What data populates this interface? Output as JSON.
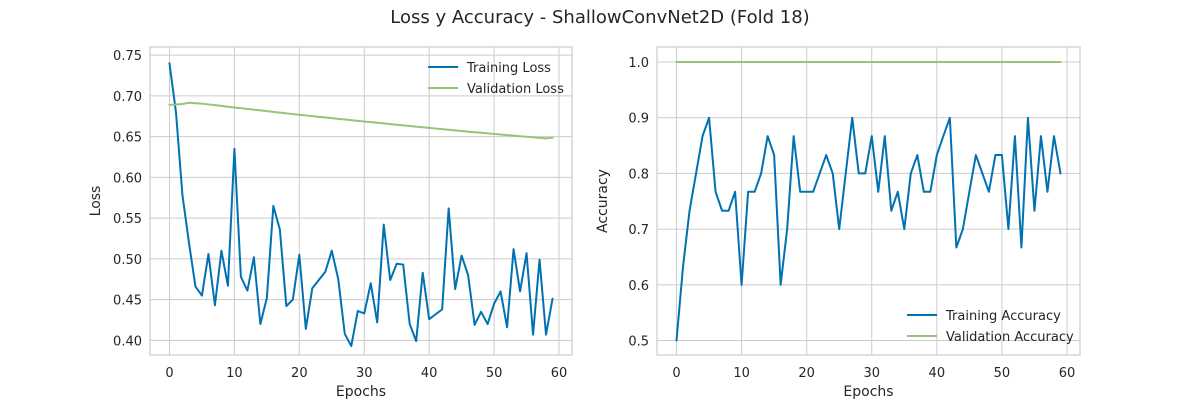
{
  "figure": {
    "title": "Loss y Accuracy - ShallowConvNet2D (Fold 18)"
  },
  "colors": {
    "training": "#0072b2",
    "validation": "#99c27a"
  },
  "chart_data": [
    {
      "type": "line",
      "title": "",
      "xlabel": "Epochs",
      "ylabel": "Loss",
      "xlim": [
        -3,
        62
      ],
      "ylim": [
        0.382,
        0.76
      ],
      "xticks": [
        0,
        10,
        20,
        30,
        40,
        50,
        60
      ],
      "yticks": [
        0.4,
        0.45,
        0.5,
        0.55,
        0.6,
        0.65,
        0.7,
        0.75
      ],
      "ytick_labels": [
        "0.40",
        "0.45",
        "0.50",
        "0.55",
        "0.60",
        "0.65",
        "0.70",
        "0.75"
      ],
      "grid": true,
      "legend_position": "top-right",
      "series": [
        {
          "name": "Training Loss",
          "values": [
            0.74,
            0.68,
            0.578,
            0.52,
            0.466,
            0.455,
            0.506,
            0.443,
            0.51,
            0.467,
            0.635,
            0.478,
            0.461,
            0.502,
            0.42,
            0.452,
            0.565,
            0.536,
            0.442,
            0.45,
            0.505,
            0.414,
            0.464,
            0.474,
            0.484,
            0.51,
            0.475,
            0.408,
            0.393,
            0.436,
            0.433,
            0.47,
            0.422,
            0.542,
            0.474,
            0.494,
            0.493,
            0.42,
            0.399,
            0.483,
            0.426,
            0.432,
            0.438,
            0.562,
            0.463,
            0.504,
            0.48,
            0.419,
            0.435,
            0.42,
            0.445,
            0.46,
            0.416,
            0.512,
            0.46,
            0.507,
            0.407,
            0.499,
            0.407,
            0.451
          ]
        },
        {
          "name": "Validation Loss",
          "values": [
            0.689,
            0.6895,
            0.69,
            0.6915,
            0.691,
            0.6905,
            0.6895,
            0.6887,
            0.6877,
            0.6867,
            0.6858,
            0.6849,
            0.684,
            0.6831,
            0.6822,
            0.6813,
            0.6804,
            0.6795,
            0.6786,
            0.6777,
            0.6769,
            0.676,
            0.6752,
            0.6743,
            0.6735,
            0.6727,
            0.6718,
            0.671,
            0.6702,
            0.6694,
            0.6686,
            0.6678,
            0.667,
            0.6662,
            0.6654,
            0.6646,
            0.6638,
            0.663,
            0.6622,
            0.6615,
            0.6607,
            0.6599,
            0.6592,
            0.6584,
            0.6577,
            0.6569,
            0.6562,
            0.6554,
            0.6547,
            0.654,
            0.6533,
            0.6526,
            0.6519,
            0.6512,
            0.6505,
            0.6498,
            0.6492,
            0.6485,
            0.6479,
            0.6487
          ]
        }
      ]
    },
    {
      "type": "line",
      "title": "",
      "xlabel": "Epochs",
      "ylabel": "Accuracy",
      "xlim": [
        -3,
        62
      ],
      "ylim": [
        0.474,
        1.027
      ],
      "xticks": [
        0,
        10,
        20,
        30,
        40,
        50,
        60
      ],
      "yticks": [
        0.5,
        0.6,
        0.7,
        0.8,
        0.9,
        1.0
      ],
      "ytick_labels": [
        "0.5",
        "0.6",
        "0.7",
        "0.8",
        "0.9",
        "1.0"
      ],
      "grid": true,
      "legend_position": "bottom-right",
      "series": [
        {
          "name": "Training Accuracy",
          "values": [
            0.5,
            0.633,
            0.733,
            0.8,
            0.867,
            0.9,
            0.767,
            0.733,
            0.733,
            0.767,
            0.6,
            0.767,
            0.767,
            0.8,
            0.867,
            0.833,
            0.6,
            0.7,
            0.867,
            0.767,
            0.767,
            0.767,
            0.8,
            0.833,
            0.8,
            0.7,
            0.8,
            0.9,
            0.8,
            0.8,
            0.867,
            0.767,
            0.867,
            0.733,
            0.767,
            0.7,
            0.8,
            0.833,
            0.767,
            0.767,
            0.833,
            0.867,
            0.9,
            0.667,
            0.7,
            0.767,
            0.833,
            0.8,
            0.767,
            0.833,
            0.833,
            0.7,
            0.867,
            0.667,
            0.9,
            0.733,
            0.867,
            0.767,
            0.867,
            0.8
          ]
        },
        {
          "name": "Validation Accuracy",
          "values": [
            1.0,
            1.0,
            1.0,
            1.0,
            1.0,
            1.0,
            1.0,
            1.0,
            1.0,
            1.0,
            1.0,
            1.0,
            1.0,
            1.0,
            1.0,
            1.0,
            1.0,
            1.0,
            1.0,
            1.0,
            1.0,
            1.0,
            1.0,
            1.0,
            1.0,
            1.0,
            1.0,
            1.0,
            1.0,
            1.0,
            1.0,
            1.0,
            1.0,
            1.0,
            1.0,
            1.0,
            1.0,
            1.0,
            1.0,
            1.0,
            1.0,
            1.0,
            1.0,
            1.0,
            1.0,
            1.0,
            1.0,
            1.0,
            1.0,
            1.0,
            1.0,
            1.0,
            1.0,
            1.0,
            1.0,
            1.0,
            1.0,
            1.0,
            1.0,
            1.0
          ]
        }
      ]
    }
  ]
}
